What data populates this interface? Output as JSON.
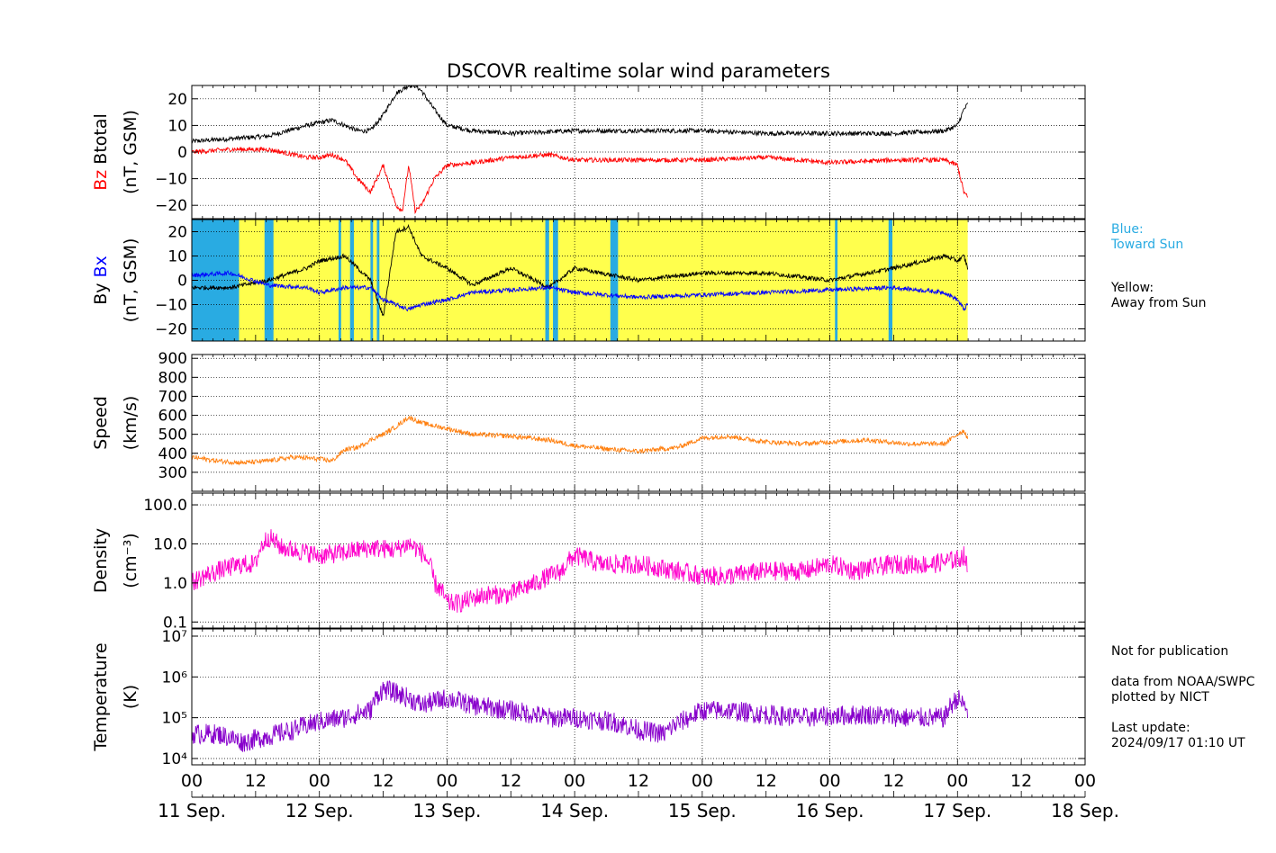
{
  "title": "DSCOVR realtime solar wind parameters",
  "colors": {
    "btotal": "#000000",
    "bz": "#ff0000",
    "by": "#000000",
    "bx": "#0000ff",
    "toward_bg": "#29abe2",
    "away_bg": "#ffff4d",
    "speed": "#ff7f0e",
    "density": "#ff00cc",
    "temperature": "#8800cc"
  },
  "legend": {
    "blue_label": "Blue:",
    "blue_desc": "Toward Sun",
    "yellow_label": "Yellow:",
    "yellow_desc": "Away from Sun"
  },
  "notes": {
    "publication": "Not for publication",
    "source": "data from NOAA/SWPC",
    "plotted": "plotted by NICT",
    "update_label": "Last update:",
    "update_time": "2024/09/17 01:10 UT"
  },
  "x_axis": {
    "hour_ticks": [
      "00",
      "12",
      "00",
      "12",
      "00",
      "12",
      "00",
      "12",
      "00",
      "12",
      "00",
      "12",
      "00",
      "12",
      "00"
    ],
    "date_labels": [
      "11 Sep.",
      "12 Sep.",
      "13 Sep.",
      "14 Sep.",
      "15 Sep.",
      "16 Sep.",
      "17 Sep.",
      "18 Sep."
    ]
  },
  "chart_data": [
    {
      "type": "line",
      "panel": "Btotal/Bz",
      "ylabel_parts": [
        "Bz",
        "Btotal"
      ],
      "yunit": "(nT, GSM)",
      "ylim": [
        -25,
        25
      ],
      "yticks": [
        -20,
        -10,
        0,
        10,
        20
      ],
      "xlim_days": [
        0,
        7
      ],
      "grid": true,
      "series": [
        {
          "name": "Btotal",
          "x": [
            0,
            0.3,
            0.6,
            0.9,
            1.0,
            1.1,
            1.2,
            1.3,
            1.4,
            1.5,
            1.6,
            1.7,
            1.75,
            1.8,
            1.9,
            2.0,
            2.2,
            2.5,
            3.0,
            3.5,
            4.0,
            4.5,
            5.0,
            5.5,
            5.9,
            6.0,
            6.05,
            6.08
          ],
          "y": [
            4,
            5,
            6,
            10,
            11,
            12,
            10,
            8,
            8,
            14,
            22,
            25,
            25,
            23,
            16,
            10,
            8,
            7,
            8,
            8,
            8,
            7,
            7,
            7,
            8,
            10,
            16,
            18
          ]
        },
        {
          "name": "Bz",
          "x": [
            0,
            0.3,
            0.6,
            0.9,
            1.0,
            1.1,
            1.2,
            1.3,
            1.4,
            1.5,
            1.6,
            1.65,
            1.7,
            1.75,
            1.8,
            1.9,
            2.0,
            2.2,
            2.5,
            2.8,
            3.0,
            3.5,
            4.0,
            4.5,
            5.0,
            5.5,
            5.9,
            6.0,
            6.05,
            6.08
          ],
          "y": [
            0,
            1,
            1,
            -2,
            -2,
            -1,
            -3,
            -10,
            -15,
            -5,
            -20,
            -22,
            -5,
            -22,
            -20,
            -10,
            -5,
            -4,
            -2,
            -1,
            -3,
            -3,
            -3,
            -2,
            -4,
            -3,
            -3,
            -5,
            -15,
            -17
          ]
        }
      ]
    },
    {
      "type": "line",
      "panel": "By/Bx",
      "ylabel_parts": [
        "By",
        "Bx"
      ],
      "yunit": "(nT, GSM)",
      "ylim": [
        -25,
        25
      ],
      "yticks": [
        -20,
        -10,
        0,
        10,
        20
      ],
      "xlim_days": [
        0,
        7
      ],
      "grid": true,
      "sector_bands_toward": [
        [
          0,
          0.37
        ],
        [
          0.57,
          0.64
        ],
        [
          1.15,
          1.17
        ],
        [
          1.24,
          1.27
        ],
        [
          1.4,
          1.42
        ],
        [
          1.45,
          1.47
        ],
        [
          2.77,
          2.8
        ],
        [
          2.83,
          2.87
        ],
        [
          3.28,
          3.34
        ],
        [
          5.04,
          5.06
        ],
        [
          5.46,
          5.49
        ]
      ],
      "series": [
        {
          "name": "By",
          "x": [
            0,
            0.3,
            0.6,
            0.9,
            1.0,
            1.2,
            1.4,
            1.5,
            1.6,
            1.7,
            1.8,
            2.0,
            2.2,
            2.5,
            2.8,
            3.0,
            3.5,
            4.0,
            4.5,
            5.0,
            5.5,
            5.9,
            6.0,
            6.05,
            6.08
          ],
          "y": [
            -3,
            -3,
            0,
            5,
            8,
            10,
            0,
            -15,
            20,
            22,
            10,
            5,
            -2,
            5,
            -3,
            5,
            0,
            3,
            3,
            0,
            5,
            10,
            8,
            10,
            5
          ]
        },
        {
          "name": "Bx",
          "x": [
            0,
            0.3,
            0.6,
            0.9,
            1.0,
            1.2,
            1.4,
            1.5,
            1.6,
            1.7,
            1.8,
            2.0,
            2.2,
            2.5,
            2.8,
            3.0,
            3.5,
            4.0,
            4.5,
            5.0,
            5.5,
            5.9,
            6.0,
            6.05,
            6.08
          ],
          "y": [
            2,
            3,
            -2,
            -3,
            -5,
            -3,
            -3,
            -8,
            -10,
            -12,
            -10,
            -8,
            -5,
            -4,
            -3,
            -5,
            -7,
            -6,
            -5,
            -4,
            -3,
            -5,
            -8,
            -12,
            -10
          ]
        }
      ]
    },
    {
      "type": "line",
      "panel": "Speed",
      "ylabel_parts": [
        "Speed"
      ],
      "yunit": "(km/s)",
      "ylim": [
        200,
        920
      ],
      "yticks": [
        300,
        400,
        500,
        600,
        700,
        800,
        900
      ],
      "xlim_days": [
        0,
        7
      ],
      "grid": true,
      "series": [
        {
          "name": "Speed",
          "x": [
            0,
            0.2,
            0.4,
            0.6,
            0.8,
            1.0,
            1.1,
            1.2,
            1.3,
            1.4,
            1.5,
            1.6,
            1.7,
            1.8,
            2.0,
            2.2,
            2.5,
            2.8,
            3.0,
            3.3,
            3.5,
            3.8,
            4.0,
            4.2,
            4.5,
            4.8,
            5.0,
            5.3,
            5.6,
            5.9,
            6.0,
            6.05,
            6.08
          ],
          "y": [
            380,
            360,
            350,
            360,
            380,
            370,
            360,
            420,
            430,
            470,
            500,
            540,
            590,
            560,
            530,
            500,
            490,
            470,
            440,
            420,
            410,
            430,
            480,
            490,
            460,
            450,
            460,
            470,
            450,
            450,
            500,
            520,
            480
          ]
        }
      ]
    },
    {
      "type": "line",
      "panel": "Density",
      "ylabel_parts": [
        "Density"
      ],
      "yunit": "(cm⁻³)",
      "yscale": "log",
      "ylim": [
        0.07,
        200
      ],
      "yticks": [
        0.1,
        1.0,
        10.0,
        100.0
      ],
      "ytick_labels": [
        "0.1",
        "1.0",
        "10.0",
        "100.0"
      ],
      "xlim_days": [
        0,
        7
      ],
      "grid": true,
      "series": [
        {
          "name": "Density",
          "x": [
            0,
            0.2,
            0.4,
            0.5,
            0.6,
            0.7,
            0.9,
            1.0,
            1.2,
            1.4,
            1.6,
            1.7,
            1.8,
            1.9,
            2.0,
            2.1,
            2.3,
            2.5,
            2.7,
            2.9,
            3.0,
            3.2,
            3.5,
            3.8,
            4.0,
            4.2,
            4.5,
            4.8,
            5.0,
            5.2,
            5.5,
            5.8,
            6.0,
            6.05,
            6.08
          ],
          "y": [
            1,
            2,
            3,
            3,
            15,
            8,
            6,
            5,
            6,
            8,
            7,
            10,
            6,
            1,
            0.3,
            0.3,
            0.5,
            0.5,
            1,
            2,
            5,
            3,
            3,
            2,
            1.5,
            1.5,
            2,
            2,
            3,
            2,
            3,
            3,
            4,
            5,
            2
          ]
        }
      ]
    },
    {
      "type": "line",
      "panel": "Temperature",
      "ylabel_parts": [
        "Temperature"
      ],
      "yunit": "(K)",
      "yscale": "log",
      "ylim": [
        7000,
        15000000
      ],
      "yticks": [
        10000,
        100000,
        1000000,
        10000000
      ],
      "ytick_labels": [
        "10⁴",
        "10⁵",
        "10⁶",
        "10⁷"
      ],
      "xlim_days": [
        0,
        7
      ],
      "grid": true,
      "series": [
        {
          "name": "Temperature",
          "x": [
            0,
            0.2,
            0.4,
            0.6,
            0.8,
            1.0,
            1.2,
            1.4,
            1.5,
            1.6,
            1.7,
            1.8,
            2.0,
            2.2,
            2.5,
            2.8,
            3.0,
            3.3,
            3.5,
            3.7,
            3.9,
            4.0,
            4.2,
            4.5,
            4.8,
            5.0,
            5.3,
            5.6,
            5.9,
            6.0,
            6.05,
            6.08
          ],
          "y": [
            40000,
            40000,
            25000,
            35000,
            50000,
            80000,
            100000,
            150000,
            500000,
            400000,
            300000,
            200000,
            300000,
            200000,
            150000,
            100000,
            100000,
            80000,
            50000,
            40000,
            100000,
            150000,
            150000,
            120000,
            100000,
            110000,
            120000,
            100000,
            100000,
            300000,
            200000,
            150000
          ]
        }
      ]
    }
  ]
}
